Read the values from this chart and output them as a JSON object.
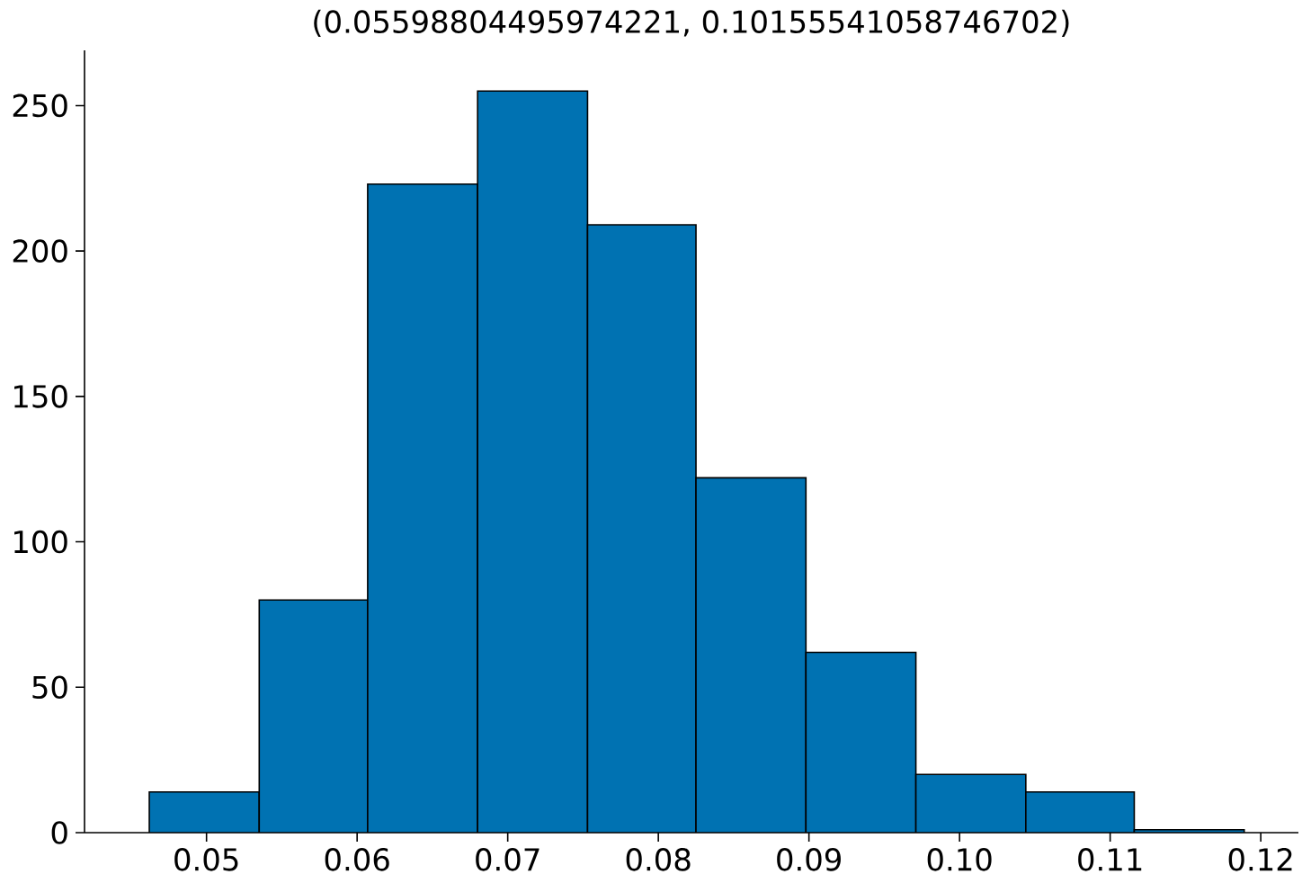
{
  "chart_data": {
    "type": "histogram",
    "title": "(0.05598804495974221, 0.10155541058746702)",
    "bins": [
      0.0462,
      0.0535,
      0.0607,
      0.068,
      0.0753,
      0.0825,
      0.0898,
      0.0971,
      0.1044,
      0.1116,
      0.1189
    ],
    "values": [
      14,
      80,
      223,
      255,
      209,
      122,
      62,
      20,
      14,
      1
    ],
    "color": "#0072b2",
    "xlim": [
      0.0419,
      0.1225
    ],
    "ylim": [
      0,
      269
    ],
    "xticks": [
      {
        "value": 0.05,
        "label": "0.05"
      },
      {
        "value": 0.06,
        "label": "0.06"
      },
      {
        "value": 0.07,
        "label": "0.07"
      },
      {
        "value": 0.08,
        "label": "0.08"
      },
      {
        "value": 0.09,
        "label": "0.09"
      },
      {
        "value": 0.1,
        "label": "0.10"
      },
      {
        "value": 0.11,
        "label": "0.11"
      },
      {
        "value": 0.12,
        "label": "0.12"
      }
    ],
    "yticks": [
      0,
      50,
      100,
      150,
      200,
      250
    ],
    "grid": false
  }
}
